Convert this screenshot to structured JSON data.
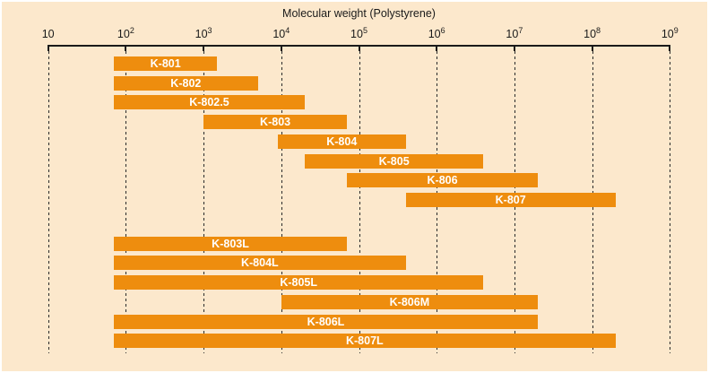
{
  "panel": {
    "background": "#fce8cc",
    "border_color": "#ffffff"
  },
  "colors": {
    "bar": "#ee8d0e",
    "bar_label": "#ffffff",
    "axis": "#1a1a1a",
    "gridline": "#2a2a2a",
    "text": "#1a1a1a"
  },
  "chart_data": {
    "type": "bar",
    "orientation": "horizontal-range",
    "title": "Molecular weight (Polystyrene)",
    "x_axis": {
      "scale": "log10",
      "min": 10,
      "max": 1000000000,
      "gridlines": "dashed-vertical",
      "ticks": [
        {
          "exp": 1,
          "base": "10",
          "sup": ""
        },
        {
          "exp": 2,
          "base": "10",
          "sup": "2"
        },
        {
          "exp": 3,
          "base": "10",
          "sup": "3"
        },
        {
          "exp": 4,
          "base": "10",
          "sup": "4"
        },
        {
          "exp": 5,
          "base": "10",
          "sup": "5"
        },
        {
          "exp": 6,
          "base": "10",
          "sup": "6"
        },
        {
          "exp": 7,
          "base": "10",
          "sup": "7"
        },
        {
          "exp": 8,
          "base": "10",
          "sup": "8"
        },
        {
          "exp": 9,
          "base": "10",
          "sup": "9"
        }
      ]
    },
    "legend": "none",
    "bars": [
      {
        "label": "K-801",
        "mw_min": 70,
        "mw_max": 1500,
        "group": 0,
        "row": 0
      },
      {
        "label": "K-802",
        "mw_min": 70,
        "mw_max": 5000,
        "group": 0,
        "row": 1
      },
      {
        "label": "K-802.5",
        "mw_min": 70,
        "mw_max": 20000,
        "group": 0,
        "row": 2
      },
      {
        "label": "K-803",
        "mw_min": 1000,
        "mw_max": 70000,
        "group": 0,
        "row": 3
      },
      {
        "label": "K-804",
        "mw_min": 9000,
        "mw_max": 400000,
        "group": 0,
        "row": 4
      },
      {
        "label": "K-805",
        "mw_min": 20000,
        "mw_max": 4000000,
        "group": 0,
        "row": 5
      },
      {
        "label": "K-806",
        "mw_min": 70000,
        "mw_max": 20000000,
        "group": 0,
        "row": 6
      },
      {
        "label": "K-807",
        "mw_min": 400000,
        "mw_max": 200000000,
        "group": 0,
        "row": 7
      },
      {
        "label": "K-803L",
        "mw_min": 70,
        "mw_max": 70000,
        "group": 1,
        "row": 0
      },
      {
        "label": "K-804L",
        "mw_min": 70,
        "mw_max": 400000,
        "group": 1,
        "row": 1
      },
      {
        "label": "K-805L",
        "mw_min": 70,
        "mw_max": 4000000,
        "group": 1,
        "row": 2
      },
      {
        "label": "K-806M",
        "mw_min": 10000,
        "mw_max": 20000000,
        "group": 1,
        "row": 3
      },
      {
        "label": "K-806L",
        "mw_min": 70,
        "mw_max": 20000000,
        "group": 1,
        "row": 4
      },
      {
        "label": "K-807L",
        "mw_min": 70,
        "mw_max": 200000000,
        "group": 1,
        "row": 5
      }
    ]
  }
}
